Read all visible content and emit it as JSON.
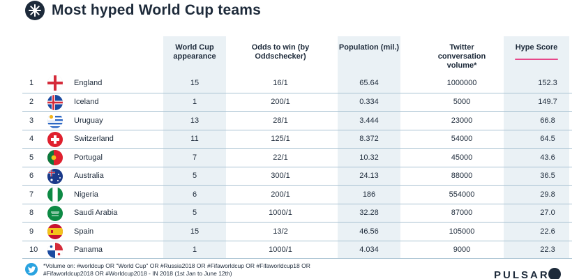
{
  "title": "Most hyped World Cup teams",
  "headers": {
    "appearance": "World Cup appearance",
    "odds": "Odds to win (by Oddschecker)",
    "population": "Population (mil.)",
    "twitter": "Twitter conversation volume*",
    "hype": "Hype Score"
  },
  "colors": {
    "accent": "#e6488a",
    "column_bg": "#eaf1f5",
    "text": "#1d2a3a",
    "twitter": "#2aa3e0"
  },
  "rows": [
    {
      "rank": "1",
      "team": "England",
      "flag": "england-flag-icon",
      "appearance": "15",
      "odds": "16/1",
      "population": "65.64",
      "twitter": "1000000",
      "hype": "152.3"
    },
    {
      "rank": "2",
      "team": "Iceland",
      "flag": "iceland-flag-icon",
      "appearance": "1",
      "odds": "200/1",
      "population": "0.334",
      "twitter": "5000",
      "hype": "149.7"
    },
    {
      "rank": "3",
      "team": "Uruguay",
      "flag": "uruguay-flag-icon",
      "appearance": "13",
      "odds": "28/1",
      "population": "3.444",
      "twitter": "23000",
      "hype": "66.8"
    },
    {
      "rank": "4",
      "team": "Switzerland",
      "flag": "switzerland-flag-icon",
      "appearance": "11",
      "odds": "125/1",
      "population": "8.372",
      "twitter": "54000",
      "hype": "64.5"
    },
    {
      "rank": "5",
      "team": "Portugal",
      "flag": "portugal-flag-icon",
      "appearance": "7",
      "odds": "22/1",
      "population": "10.32",
      "twitter": "45000",
      "hype": "43.6"
    },
    {
      "rank": "6",
      "team": "Australia",
      "flag": "australia-flag-icon",
      "appearance": "5",
      "odds": "300/1",
      "population": "24.13",
      "twitter": "88000",
      "hype": "36.5"
    },
    {
      "rank": "7",
      "team": "Nigeria",
      "flag": "nigeria-flag-icon",
      "appearance": "6",
      "odds": "200/1",
      "population": "186",
      "twitter": "554000",
      "hype": "29.8"
    },
    {
      "rank": "8",
      "team": "Saudi Arabia",
      "flag": "saudi-arabia-flag-icon",
      "appearance": "5",
      "odds": "1000/1",
      "population": "32.28",
      "twitter": "87000",
      "hype": "27.0"
    },
    {
      "rank": "9",
      "team": "Spain",
      "flag": "spain-flag-icon",
      "appearance": "15",
      "odds": "13/2",
      "population": "46.56",
      "twitter": "105000",
      "hype": "22.6"
    },
    {
      "rank": "10",
      "team": "Panama",
      "flag": "panama-flag-icon",
      "appearance": "1",
      "odds": "1000/1",
      "population": "4.034",
      "twitter": "9000",
      "hype": "22.3"
    }
  ],
  "footnote": "*Volume on: #worldcup OR \"World Cup\" OR #Russia2018 OR #Fifaworldcup OR #Fifaworldcup18 OR #Fifaworldcup2018 OR #Worldcup2018 - IN 2018 (1st Jan to June 12th)",
  "brand": "PULSAR"
}
